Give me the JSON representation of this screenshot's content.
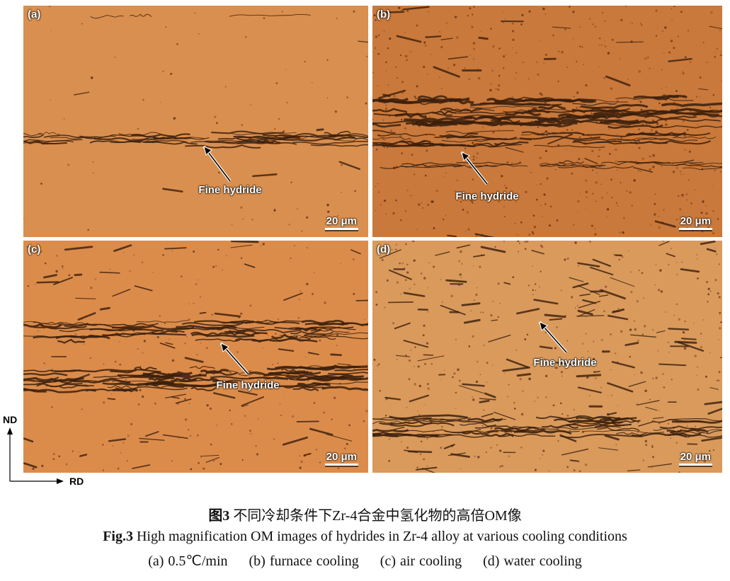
{
  "figure": {
    "panels": [
      {
        "id": "a",
        "label": "(a)",
        "annotation": "Fine hydride",
        "scale_bar": "20 μm",
        "color": "#d98f4f"
      },
      {
        "id": "b",
        "label": "(b)",
        "annotation": "Fine hydride",
        "scale_bar": "20 μm",
        "color": "#c9793b"
      },
      {
        "id": "c",
        "label": "(c)",
        "annotation": "Fine hydride",
        "scale_bar": "20 μm",
        "color": "#db8c4b"
      },
      {
        "id": "d",
        "label": "(d)",
        "annotation": "Fine hydride",
        "scale_bar": "20 μm",
        "color": "#d99a5c"
      }
    ],
    "axes": {
      "vertical": "ND",
      "horizontal": "RD"
    }
  },
  "caption": {
    "cn_label": "图3",
    "cn_text": "不同冷却条件下Zr-4合金中氢化物的高倍OM像",
    "en_label": "Fig.3",
    "en_text": "High magnification OM images of hydrides in Zr-4 alloy at various cooling conditions",
    "subcaptions": [
      "(a) 0.5℃/min",
      "(b) furnace cooling",
      "(c) air cooling",
      "(d) water cooling"
    ]
  }
}
